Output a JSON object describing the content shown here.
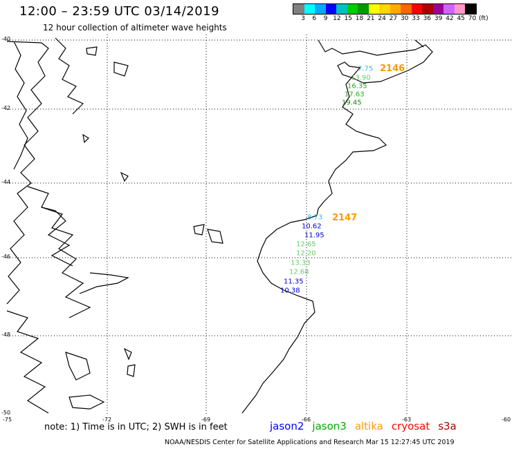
{
  "header": {
    "title": "12:00 – 23:59 UTC 03/14/2019",
    "subtitle": "12 hour collection of altimeter wave heights"
  },
  "color_scale": {
    "colors": [
      "#808080",
      "#00ffff",
      "#00aaff",
      "#0000ff",
      "#00c0c0",
      "#00cc00",
      "#009900",
      "#ffff00",
      "#ffd700",
      "#ffaa00",
      "#ff6600",
      "#ff0000",
      "#aa0000",
      "#990099",
      "#cc66ff",
      "#ff99cc",
      "#000000"
    ],
    "labels": [
      "3",
      "6",
      "9",
      "12",
      "15",
      "18",
      "21",
      "24",
      "27",
      "30",
      "33",
      "36",
      "39",
      "42",
      "45",
      "70",
      "(ft)"
    ]
  },
  "axes": {
    "lat_labels": [
      "-40",
      "-42",
      "-44",
      "-46",
      "-48",
      "-50"
    ],
    "lon_labels": [
      "-75",
      "-72",
      "-69",
      "-66",
      "-63",
      "-60"
    ]
  },
  "passes": [
    {
      "id": "2146",
      "label": "2146"
    },
    {
      "id": "2147",
      "label": "2147"
    }
  ],
  "wave_heights": {
    "pass_2146": [
      {
        "value": "7.75",
        "color": "#33bbdd"
      },
      {
        "value": "13.90",
        "color": "#66cc66"
      },
      {
        "value": "16.35",
        "color": "#22aa22"
      },
      {
        "value": "17.63",
        "color": "#22aa22"
      },
      {
        "value": "19.45",
        "color": "#118811"
      }
    ],
    "pass_2147": [
      {
        "value": "8.73",
        "color": "#33bbdd"
      },
      {
        "value": "10.62",
        "color": "#0000cc"
      },
      {
        "value": "11.95",
        "color": "#0000cc"
      },
      {
        "value": "12.65",
        "color": "#66cc66"
      },
      {
        "value": "12.20",
        "color": "#66cc66"
      },
      {
        "value": "13.33",
        "color": "#66cc66"
      },
      {
        "value": "12.68",
        "color": "#66cc66"
      },
      {
        "value": "11.35",
        "color": "#0000cc"
      },
      {
        "value": "10.38",
        "color": "#0000cc"
      }
    ]
  },
  "note": "note: 1) Time is in UTC; 2) SWH is in feet",
  "legend": [
    {
      "name": "jason2",
      "color": "#0000ff"
    },
    {
      "name": "jason3",
      "color": "#00aa00"
    },
    {
      "name": "altika",
      "color": "#ff9900"
    },
    {
      "name": "cryosat",
      "color": "#ff0000"
    },
    {
      "name": "s3a",
      "color": "#aa0000"
    }
  ],
  "footer": "NOAA/NESDIS Center for Satellite Applications and Research   Mar 15 12:27:45 UTC 2019"
}
